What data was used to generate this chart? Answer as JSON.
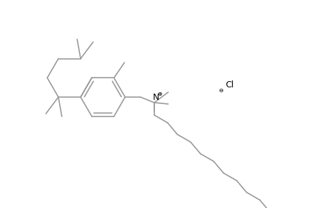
{
  "background_color": "#ffffff",
  "line_color": "#888888",
  "text_color": "#000000",
  "line_width": 1.2,
  "fig_width": 4.6,
  "fig_height": 3.0,
  "dpi": 100,
  "bond_color": "#999999"
}
